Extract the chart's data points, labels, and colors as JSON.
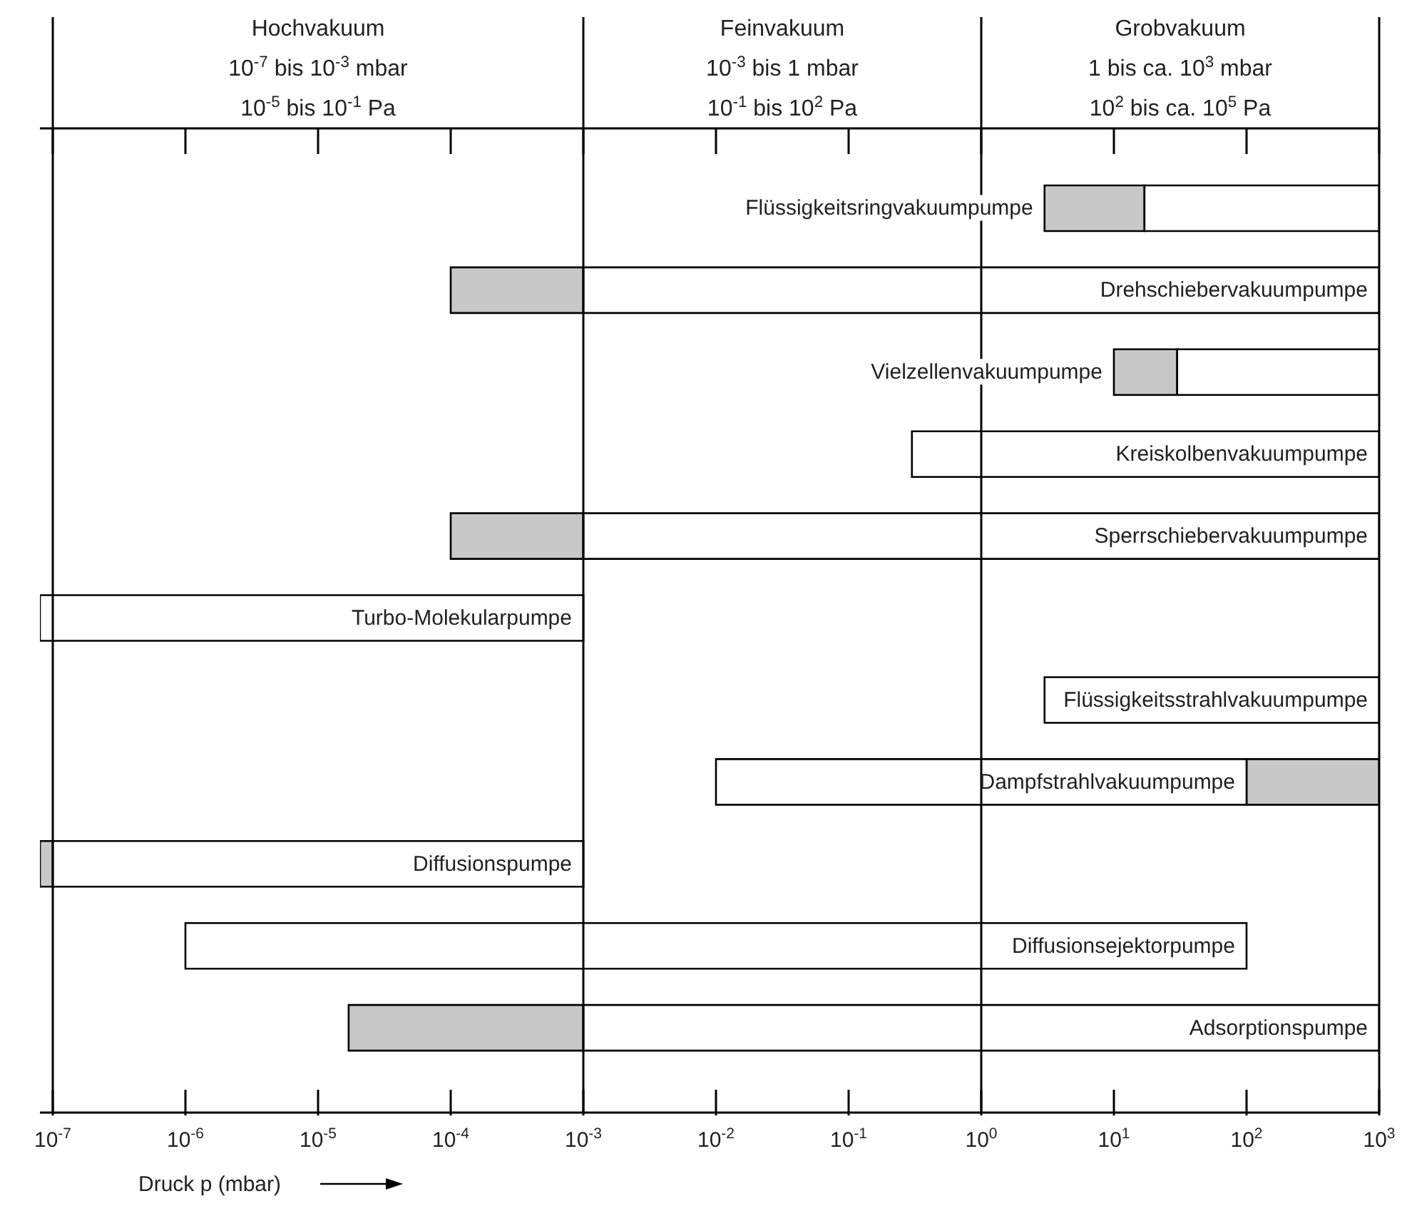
{
  "chart_data": {
    "type": "bar",
    "orientation": "horizontal",
    "log": "x",
    "xlabel": "Druck p (mbar)",
    "categories": [
      "Flüssigkeitsringvakuumpumpe",
      "Drehschiebervakuumpumpe",
      "Vielzellenvakuumpumpe",
      "Kreiskolbenvakuumpumpe",
      "Sperrschiebervakuumpumpe",
      "Turbo-Molekularpumpe",
      "Flüssigkeitsstrahlvakuumpumpe",
      "Dampfstrahlvakuumpumpe",
      "Diffusionspumpe",
      "Diffusionsejektorpumpe",
      "Adsorptionspumpe"
    ],
    "series": [
      {
        "color": "#c8c8c8",
        "base": [
          3,
          0.0001,
          10,
          null,
          0.0001,
          null,
          null,
          100,
          8e-08,
          null,
          1.7e-05
        ],
        "values": [
          14,
          0.0009,
          20,
          null,
          0.0009,
          null,
          null,
          900,
          2e-08,
          null,
          0.000983
        ]
      },
      {
        "color": "#ffffff",
        "base": [
          17,
          0.001,
          30,
          0.3,
          0.001,
          8e-08,
          3,
          0.01,
          1e-07,
          1e-06,
          0.001
        ],
        "values": [
          983,
          999.999,
          970,
          999.7,
          999.999,
          0.00099992,
          997,
          99.99,
          0.0009999,
          99.999999,
          999.999
        ]
      }
    ],
    "xlim": [
      8e-08,
      1000
    ],
    "xticks": [
      {
        "value": 1e-07,
        "label": "10$^{-7}$"
      },
      {
        "value": 1e-06,
        "label": "10$^{-6}$"
      },
      {
        "value": 1e-05,
        "label": "10$^{-5}$"
      },
      {
        "value": 0.0001,
        "label": "10$^{-4}$"
      },
      {
        "value": 0.001,
        "label": "10$^{-3}$"
      },
      {
        "value": 0.01,
        "label": "10$^{-2}$"
      },
      {
        "value": 0.1,
        "label": "10$^{-1}$"
      },
      {
        "value": 1,
        "label": "10$^{0}$"
      },
      {
        "value": 10,
        "label": "10$^{1}$"
      },
      {
        "value": 100,
        "label": "10$^{2}$"
      },
      {
        "value": 1000,
        "label": "10$^{3}$"
      }
    ],
    "ref_lines": [
      {
        "axis": "x",
        "value": 1e-07
      },
      {
        "axis": "x",
        "value": 0.001
      },
      {
        "axis": "x",
        "value": 1
      }
    ],
    "annotations": [
      "Hochvakuum\n10$^{-7}$ bis 10$^{-3}$ mbar\n10$^{-5}$ bis 10$^{-1}$ Pa",
      "Feinvakuum\n10$^{-3}$ bis 1 mbar\n10$^{-1}$ bis 10$^{2}$ Pa",
      "Grobvakuum\n1 bis ca. 10$^{3}$ mbar\n10$^{2}$ bis ca. 10$^{5}$ Pa"
    ]
  }
}
